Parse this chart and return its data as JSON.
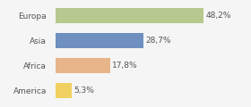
{
  "categories": [
    "Europa",
    "Asia",
    "Africa",
    "America"
  ],
  "values": [
    48.2,
    28.7,
    17.8,
    5.3
  ],
  "labels": [
    "48,2%",
    "28,7%",
    "17,8%",
    "5,3%"
  ],
  "bar_colors": [
    "#b5c98e",
    "#6e8fbf",
    "#e8b48a",
    "#f0d060"
  ],
  "background_color": "#f5f5f5",
  "xlim": [
    0,
    62
  ],
  "label_fontsize": 6.5,
  "category_fontsize": 6.5,
  "label_color": "#555555",
  "bar_height": 0.62
}
